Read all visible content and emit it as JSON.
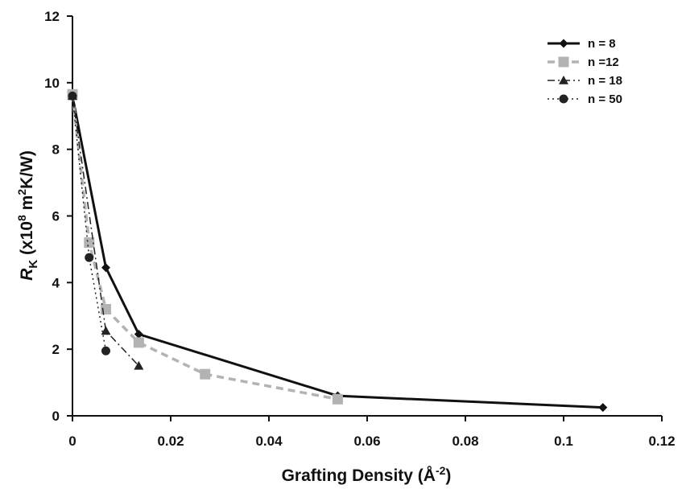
{
  "chart_data": {
    "type": "line",
    "title": "",
    "xlabel": "Grafting Density (Å",
    "xlabel_sup": "-2",
    "xlabel_end": ")",
    "ylabel_r": "R",
    "ylabel_sub": "K",
    "ylabel_mid": " (x10",
    "ylabel_sup": "8",
    "ylabel_unit": " m",
    "ylabel_sup2": "2",
    "ylabel_end": "K/W)",
    "xlim": [
      0,
      0.12
    ],
    "ylim": [
      0,
      12
    ],
    "x_ticks": [
      0,
      0.02,
      0.04,
      0.06,
      0.08,
      0.1,
      0.12
    ],
    "x_tick_labels": [
      "0",
      "0.02",
      "0.04",
      "0.06",
      "0.08",
      "0.1",
      "0.12"
    ],
    "y_ticks": [
      0,
      2,
      4,
      6,
      8,
      10,
      12
    ],
    "y_tick_labels": [
      "0",
      "2",
      "4",
      "6",
      "8",
      "10",
      "12"
    ],
    "grid": false,
    "legend_position": "top-right",
    "series": [
      {
        "name": "n = 8",
        "color": "#111111",
        "line": "solid",
        "marker": "diamond",
        "x": [
          0,
          0.0068,
          0.0135,
          0.054,
          0.108
        ],
        "y": [
          9.6,
          4.45,
          2.45,
          0.6,
          0.25
        ]
      },
      {
        "name": "n =12",
        "color": "#b3b3b3",
        "line": "dashed",
        "marker": "square",
        "x": [
          0,
          0.0034,
          0.0068,
          0.0135,
          0.027,
          0.054
        ],
        "y": [
          9.65,
          5.2,
          3.2,
          2.2,
          1.25,
          0.5
        ]
      },
      {
        "name": "n = 18",
        "color": "#222222",
        "line": "dashdot",
        "marker": "triangle",
        "x": [
          0,
          0.0068,
          0.0135
        ],
        "y": [
          9.6,
          2.55,
          1.5
        ]
      },
      {
        "name": "n = 50",
        "color": "#222222",
        "line": "dotted",
        "marker": "circle",
        "x": [
          0,
          0.0034,
          0.0068
        ],
        "y": [
          9.6,
          4.75,
          1.95
        ]
      }
    ]
  }
}
